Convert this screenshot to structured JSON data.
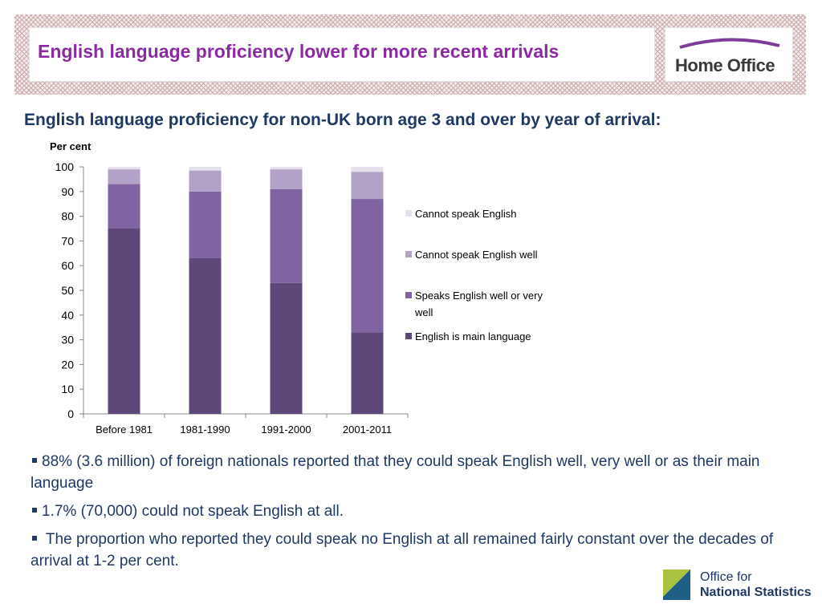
{
  "header": {
    "title": "English language proficiency lower for more recent arrivals",
    "logo_text": "Home Office"
  },
  "chart_heading": "English language proficiency for non-UK born age 3 and over by year of arrival:",
  "chart_data": {
    "type": "bar",
    "stacked": true,
    "ylabel": "Per cent",
    "xlabel": "",
    "ylim": [
      0,
      100
    ],
    "yticks": [
      0,
      10,
      20,
      30,
      40,
      50,
      60,
      70,
      80,
      90,
      100
    ],
    "categories": [
      "Before 1981",
      "1981-1990",
      "1991-2000",
      "2001-2011"
    ],
    "series": [
      {
        "name": "English is main language",
        "color": "#5e4779",
        "values": [
          75,
          63,
          53,
          33
        ]
      },
      {
        "name": "Speaks English well or very well",
        "color": "#8064a2",
        "values": [
          18,
          27,
          38,
          54
        ]
      },
      {
        "name": "Cannot speak English well",
        "color": "#b3a2c7",
        "values": [
          6,
          8.5,
          8,
          11
        ]
      },
      {
        "name": "Cannot speak English",
        "color": "#e6e0ec",
        "values": [
          1,
          1.5,
          1,
          2
        ]
      }
    ],
    "legend_position": "right",
    "legend_order": [
      "Cannot speak English",
      "Cannot speak English well",
      "Speaks English well or very well",
      "English is main language"
    ],
    "grid": false
  },
  "bullets": [
    "88% (3.6 million) of foreign nationals reported that they could speak English well, very well or as their main language",
    "1.7% (70,000) could not speak English at all.",
    " The proportion who reported they could speak no English at all remained fairly constant over the decades of arrival at 1-2 per cent."
  ],
  "footer_logo": {
    "line1": "Office for",
    "line2": "National Statistics"
  },
  "colors": {
    "title": "#8a2ba3",
    "heading": "#1f3864",
    "ons_green": "#a9c23f",
    "ons_blue": "#1f5f86"
  }
}
